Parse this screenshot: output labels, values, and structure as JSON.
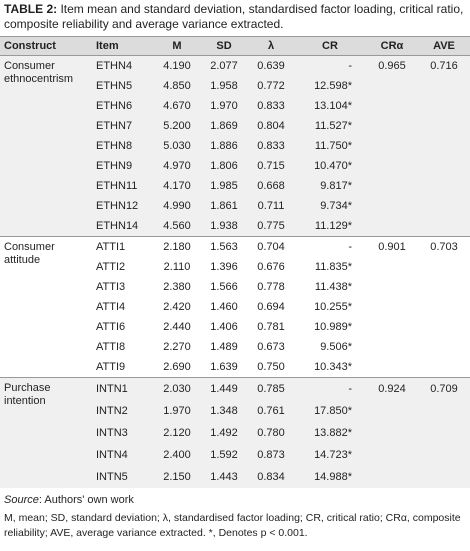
{
  "caption": {
    "label": "TABLE 2:",
    "text": "Item mean and standard deviation, standardised factor loading, critical ratio, composite reliability and average variance extracted."
  },
  "table": {
    "headers": [
      "Construct",
      "Item",
      "M",
      "SD",
      "λ",
      "CR",
      "CRα",
      "AVE"
    ],
    "groups": [
      {
        "construct": "Consumer ethnocentrism",
        "cr_alpha": "0.965",
        "ave": "0.716",
        "rows": [
          [
            "ETHN4",
            "4.190",
            "2.077",
            "0.639",
            "-"
          ],
          [
            "ETHN5",
            "4.850",
            "1.958",
            "0.772",
            "12.598*"
          ],
          [
            "ETHN6",
            "4.670",
            "1.970",
            "0.833",
            "13.104*"
          ],
          [
            "ETHN7",
            "5.200",
            "1.869",
            "0.804",
            "11.527*"
          ],
          [
            "ETHN8",
            "5.030",
            "1.886",
            "0.833",
            "11.750*"
          ],
          [
            "ETHN9",
            "4.970",
            "1.806",
            "0.715",
            "10.470*"
          ],
          [
            "ETHN11",
            "4.170",
            "1.985",
            "0.668",
            "9.817*"
          ],
          [
            "ETHN12",
            "4.990",
            "1.861",
            "0.711",
            "9.734*"
          ],
          [
            "ETHN14",
            "4.560",
            "1.938",
            "0.775",
            "11.129*"
          ]
        ]
      },
      {
        "construct": "Consumer attitude",
        "cr_alpha": "0.901",
        "ave": "0.703",
        "rows": [
          [
            "ATTI1",
            "2.180",
            "1.563",
            "0.704",
            "-"
          ],
          [
            "ATTI2",
            "2.110",
            "1.396",
            "0.676",
            "11.835*"
          ],
          [
            "ATTI3",
            "2.380",
            "1.566",
            "0.778",
            "11.438*"
          ],
          [
            "ATTI4",
            "2.420",
            "1.460",
            "0.694",
            "10.255*"
          ],
          [
            "ATTI6",
            "2.440",
            "1.406",
            "0.781",
            "10.989*"
          ],
          [
            "ATTI8",
            "2.270",
            "1.489",
            "0.673",
            "9.506*"
          ],
          [
            "ATTI9",
            "2.690",
            "1.639",
            "0.750",
            "10.343*"
          ]
        ]
      },
      {
        "construct": "Purchase intention",
        "cr_alpha": "0.924",
        "ave": "0.709",
        "rows": [
          [
            "INTN1",
            "2.030",
            "1.449",
            "0.785",
            "-"
          ],
          [
            "INTN2",
            "1.970",
            "1.348",
            "0.761",
            "17.850*"
          ],
          [
            "INTN3",
            "2.120",
            "1.492",
            "0.780",
            "13.882*"
          ],
          [
            "INTN4",
            "2.400",
            "1.592",
            "0.873",
            "14.723*"
          ],
          [
            "INTN5",
            "2.150",
            "1.443",
            "0.834",
            "14.988*"
          ]
        ]
      }
    ]
  },
  "source": {
    "label": "Source",
    "text": ": Authors' own work"
  },
  "footnote": "M, mean; SD, standard deviation; λ, standardised factor loading; CR, critical ratio; CRα, composite reliability; AVE, average variance extracted. *, Denotes p < 0.001."
}
